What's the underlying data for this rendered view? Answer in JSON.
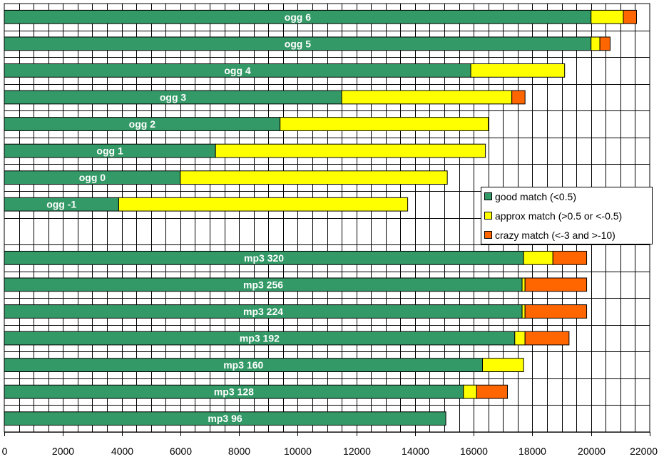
{
  "chart_data": {
    "type": "bar",
    "orientation": "horizontal",
    "stacked": true,
    "categories": [
      "ogg 6",
      "ogg 5",
      "ogg 4",
      "ogg 3",
      "ogg 2",
      "ogg 1",
      "ogg 0",
      "ogg -1",
      "",
      "mp3 320",
      "mp3 256",
      "mp3 224",
      "mp3 192",
      "mp3 160",
      "mp3 128",
      "mp3 96"
    ],
    "series": [
      {
        "name": "good match (<0.5)",
        "color": "#339966",
        "values": [
          20000,
          20000,
          15900,
          11500,
          9400,
          7200,
          6000,
          3900,
          null,
          17700,
          17650,
          17650,
          17400,
          16300,
          15650,
          15050
        ]
      },
      {
        "name": "approx match (>0.5 or <-0.5)",
        "color": "#ffff00",
        "values": [
          1100,
          300,
          3200,
          5800,
          7100,
          9200,
          9100,
          9850,
          null,
          1000,
          100,
          100,
          350,
          1400,
          450,
          0
        ]
      },
      {
        "name": "crazy match (<-3 and >-10)",
        "color": "#ff6600",
        "values": [
          450,
          350,
          0,
          450,
          0,
          0,
          0,
          0,
          null,
          1150,
          2100,
          2100,
          1500,
          0,
          1050,
          0
        ]
      }
    ],
    "xlim": [
      0,
      22000
    ],
    "xticks": [
      0,
      2000,
      4000,
      6000,
      8000,
      10000,
      12000,
      14000,
      16000,
      18000,
      20000,
      22000
    ],
    "xticklabels": [
      "0",
      "2000",
      "4000",
      "6000",
      "8000",
      "10000",
      "12000",
      "14000",
      "16000",
      "18000",
      "20000",
      "22000"
    ],
    "xlabel": "",
    "ylabel": "",
    "title": "",
    "grid": true,
    "legend_position": "right",
    "legend": [
      "good match (<0.5)",
      "approx match (>0.5 or <-0.5)",
      "crazy match (<-3 and >-10)"
    ]
  }
}
